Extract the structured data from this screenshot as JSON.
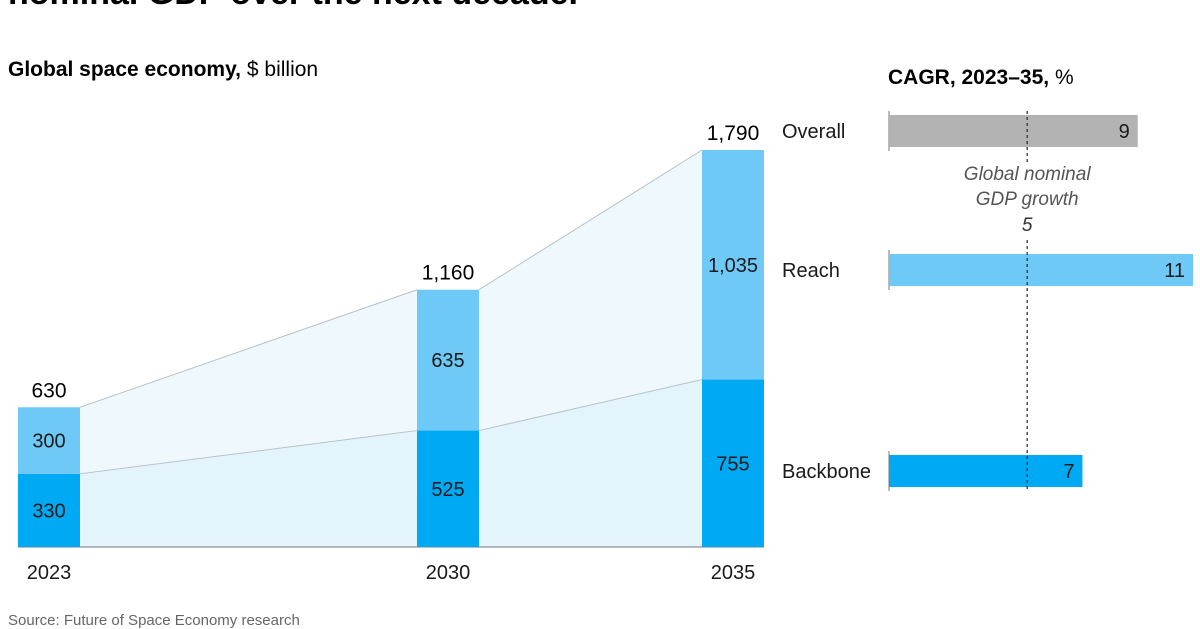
{
  "headline": "nominal GDP over the next decade.",
  "source": "Source: Future of Space Economy research",
  "colors": {
    "backbone": "#00a9f4",
    "reach": "#6ec9f7",
    "overall": "#b3b3b3",
    "band_reach": "#eef8fd",
    "band_backbone": "#e4f4fc",
    "band_line": "#b8c2c8",
    "axis": "#777777"
  },
  "chart_data": [
    {
      "type": "bar",
      "stacked": true,
      "title": "Global space economy,",
      "unit": "$ billion",
      "categories": [
        "2023",
        "2030",
        "2035"
      ],
      "series": [
        {
          "name": "Backbone",
          "values": [
            330,
            525,
            755
          ]
        },
        {
          "name": "Reach",
          "values": [
            300,
            635,
            1035
          ]
        }
      ],
      "totals": [
        "630",
        "1,160",
        "1,790"
      ],
      "ylim": [
        0,
        1790
      ]
    },
    {
      "type": "bar",
      "orientation": "horizontal",
      "title": "CAGR, 2023–35,",
      "unit": "%",
      "categories": [
        "Overall",
        "Reach",
        "Backbone"
      ],
      "values": [
        9,
        11,
        7
      ],
      "xlim": [
        0,
        11
      ],
      "reference_line": {
        "value": 5,
        "label_line1": "Global nominal",
        "label_line2": "GDP growth",
        "value_label": "5"
      }
    }
  ]
}
